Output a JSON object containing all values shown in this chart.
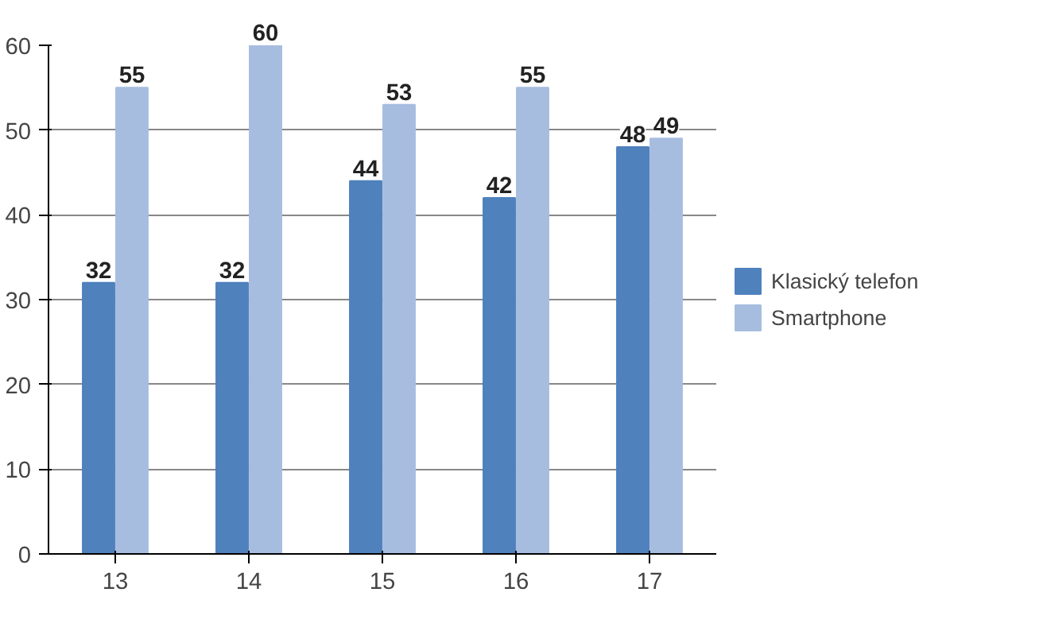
{
  "chart_data": {
    "type": "bar",
    "categories": [
      "13",
      "14",
      "15",
      "16",
      "17"
    ],
    "series": [
      {
        "name": "Klasický telefon",
        "color": "#4f81bd",
        "values": [
          32,
          32,
          44,
          42,
          48
        ]
      },
      {
        "name": "Smartphone",
        "color": "#a7bde0",
        "values": [
          55,
          60,
          53,
          55,
          49
        ]
      }
    ],
    "ylim": [
      0,
      60
    ],
    "yticks": [
      0,
      10,
      20,
      30,
      40,
      50,
      60
    ],
    "grid": "y",
    "legend": "right",
    "data_labels": true
  }
}
